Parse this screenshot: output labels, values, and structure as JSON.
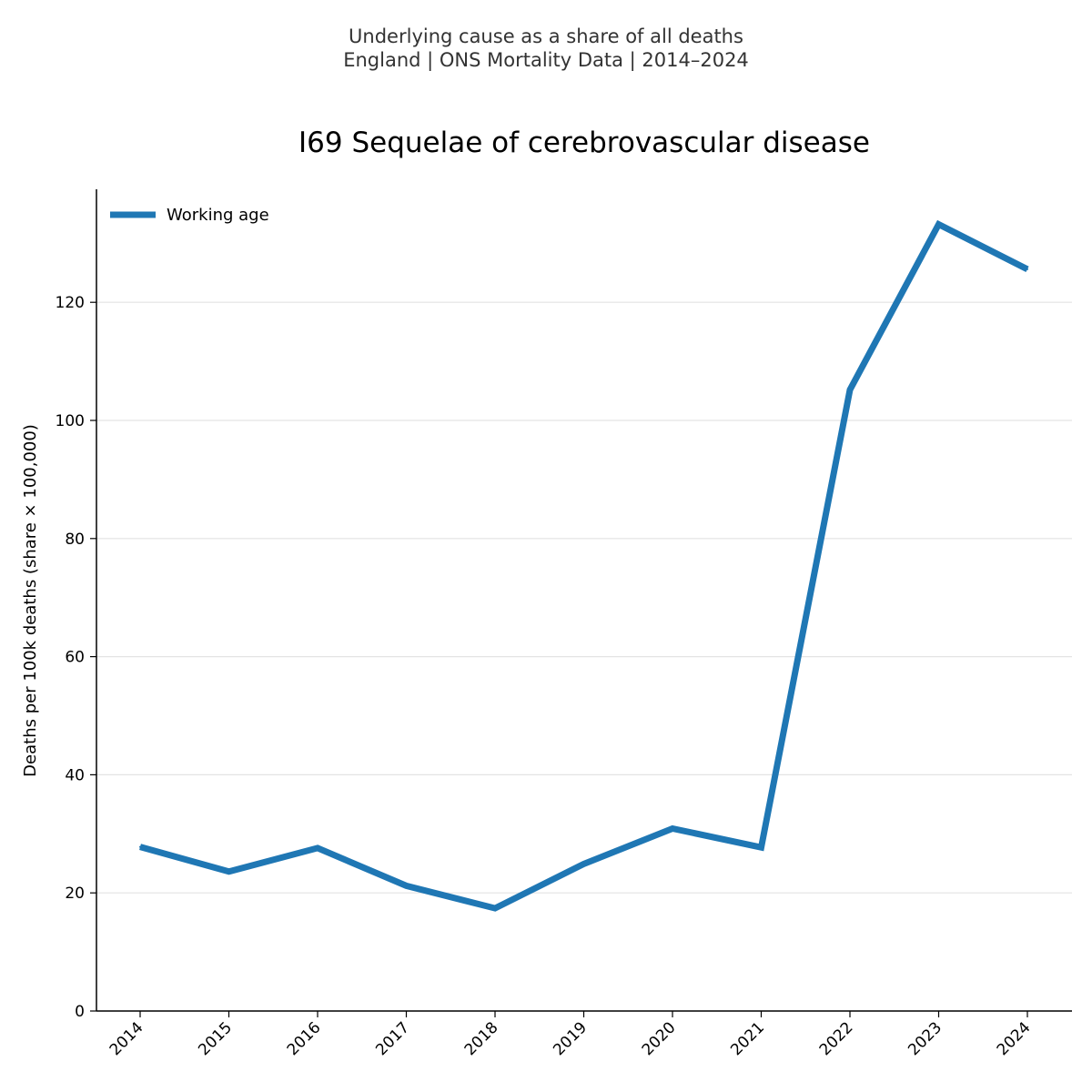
{
  "header": {
    "subtitle_line1": "Underlying cause as a share of all deaths",
    "subtitle_line2": "England | ONS Mortality Data | 2014–2024"
  },
  "chart_data": {
    "type": "line",
    "title": "I69 Sequelae of cerebrovascular disease",
    "xlabel": "",
    "ylabel": "Deaths per 100k deaths (share × 100,000)",
    "categories": [
      "2014",
      "2015",
      "2016",
      "2017",
      "2018",
      "2019",
      "2020",
      "2021",
      "2022",
      "2023",
      "2024"
    ],
    "series": [
      {
        "name": "Working age",
        "color": "#1f77b4",
        "values": [
          27.8,
          23.6,
          27.6,
          21.2,
          17.4,
          24.9,
          30.9,
          27.7,
          105.2,
          133.2,
          125.6
        ]
      }
    ],
    "ylim": [
      0,
      138
    ],
    "yticks": [
      0,
      20,
      40,
      60,
      80,
      100,
      120
    ],
    "grid": "horizontal",
    "legend_position": "top-left"
  }
}
